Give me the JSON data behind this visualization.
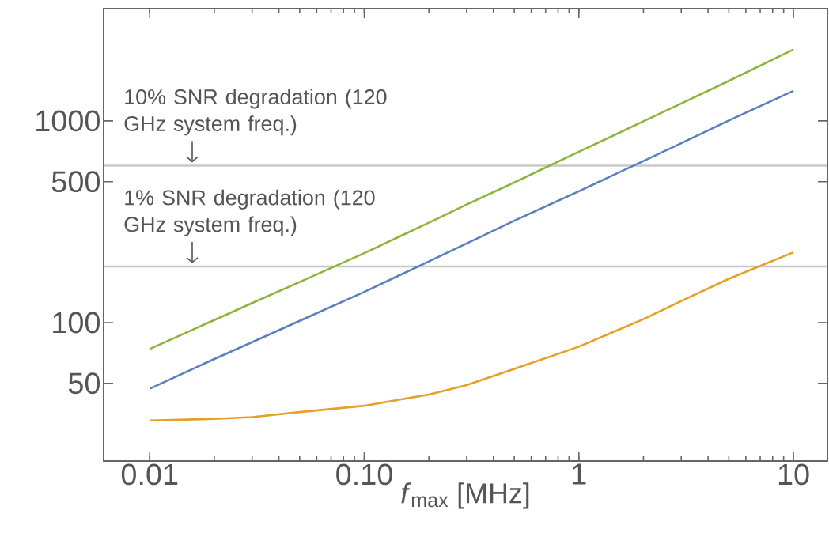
{
  "chart_data": {
    "type": "line",
    "xlabel": "*f*$_{max}$ [MHz]",
    "x": [
      0.01,
      0.02,
      0.03,
      0.05,
      0.1,
      0.2,
      0.3,
      0.5,
      1,
      2,
      3,
      5,
      10
    ],
    "series": [
      {
        "color": "#8db53a",
        "values": [
          74,
          103,
          125,
          159,
          221,
          313,
          385,
          495,
          703,
          995,
          1220,
          1580,
          2260
        ]
      },
      {
        "color": "#5b7fbf",
        "values": [
          47,
          66,
          80,
          102,
          142,
          201,
          247,
          320,
          448,
          633,
          775,
          1005,
          1410
        ]
      },
      {
        "color": "#e69f27",
        "values": [
          32.7,
          33.3,
          34,
          36,
          38.7,
          44,
          49,
          59,
          76,
          104,
          128,
          165,
          223
        ]
      }
    ],
    "log": "xy",
    "xlim": [
      0.0061,
      14.4
    ],
    "ylim": [
      20.6,
      3600
    ],
    "xticks": [
      0.01,
      {
        "value": 0.1,
        "label": "0.10"
      },
      1,
      10
    ],
    "yticks": [
      50,
      100,
      500,
      1000
    ],
    "ref_lines": [
      {
        "axis": "y",
        "value": 600,
        "label": "10% SNR degradation (120 GHz system freq.)",
        "color": "#c8c8c8"
      },
      {
        "axis": "y",
        "value": 190,
        "label": "1% SNR degradation (120 GHz system freq.)",
        "color": "#c8c8c8"
      }
    ]
  }
}
